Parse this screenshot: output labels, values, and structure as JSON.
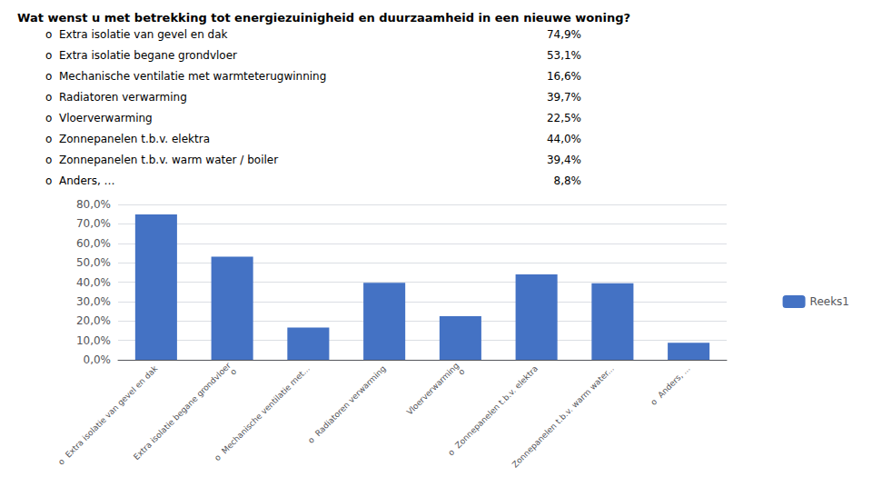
{
  "chart_data": {
    "type": "bar",
    "title": "Wat wenst u met betrekking tot energiezuinigheid en duurzaamheid in een nieuwe woning?",
    "annotations": [
      [
        "o  Extra isolatie van gevel en dak",
        "74,9%"
      ],
      [
        "o  Extra isolatie begane grondvloer",
        "53,1%"
      ],
      [
        "o  Mechanische ventilatie met warmteterugwinning",
        "16,6%"
      ],
      [
        "o  Radiatoren verwarming",
        "39,7%"
      ],
      [
        "o  Vloerverwarming",
        "22,5%"
      ],
      [
        "o  Zonnepanelen t.b.v. elektra",
        "44,0%"
      ],
      [
        "o  Zonnepanelen t.b.v. warm water / boiler",
        "39,4%"
      ],
      [
        "o  Anders, …",
        "8,8%"
      ]
    ],
    "categories": [
      "o  Extra isolatie van gevel en dak",
      "Extra isolatie begane grondvloer\no",
      "o  Mechanische ventilatie met...",
      "o  Radiatoren verwarming",
      "Vloerverwarming\no",
      "o  Zonnepanelen t.b.v. elektra",
      "Zonnepanelen t.b.v. warm water...",
      "o  Anders, ..."
    ],
    "series": [
      {
        "name": "Reeks1",
        "color": "#4472C4",
        "values": [
          74.9,
          53.1,
          16.6,
          39.7,
          22.5,
          44.0,
          39.4,
          8.8
        ]
      }
    ],
    "ylim": [
      0,
      80
    ],
    "yticks": [
      {
        "value": 0,
        "label": "0,0%"
      },
      {
        "value": 10,
        "label": "10,0%"
      },
      {
        "value": 20,
        "label": "20,0%"
      },
      {
        "value": 30,
        "label": "30,0%"
      },
      {
        "value": 40,
        "label": "40,0%"
      },
      {
        "value": 50,
        "label": "50,0%"
      },
      {
        "value": 60,
        "label": "60,0%"
      },
      {
        "value": 70,
        "label": "70,0%"
      },
      {
        "value": 80,
        "label": "80,0%"
      }
    ],
    "grid": true,
    "legend": "right"
  }
}
